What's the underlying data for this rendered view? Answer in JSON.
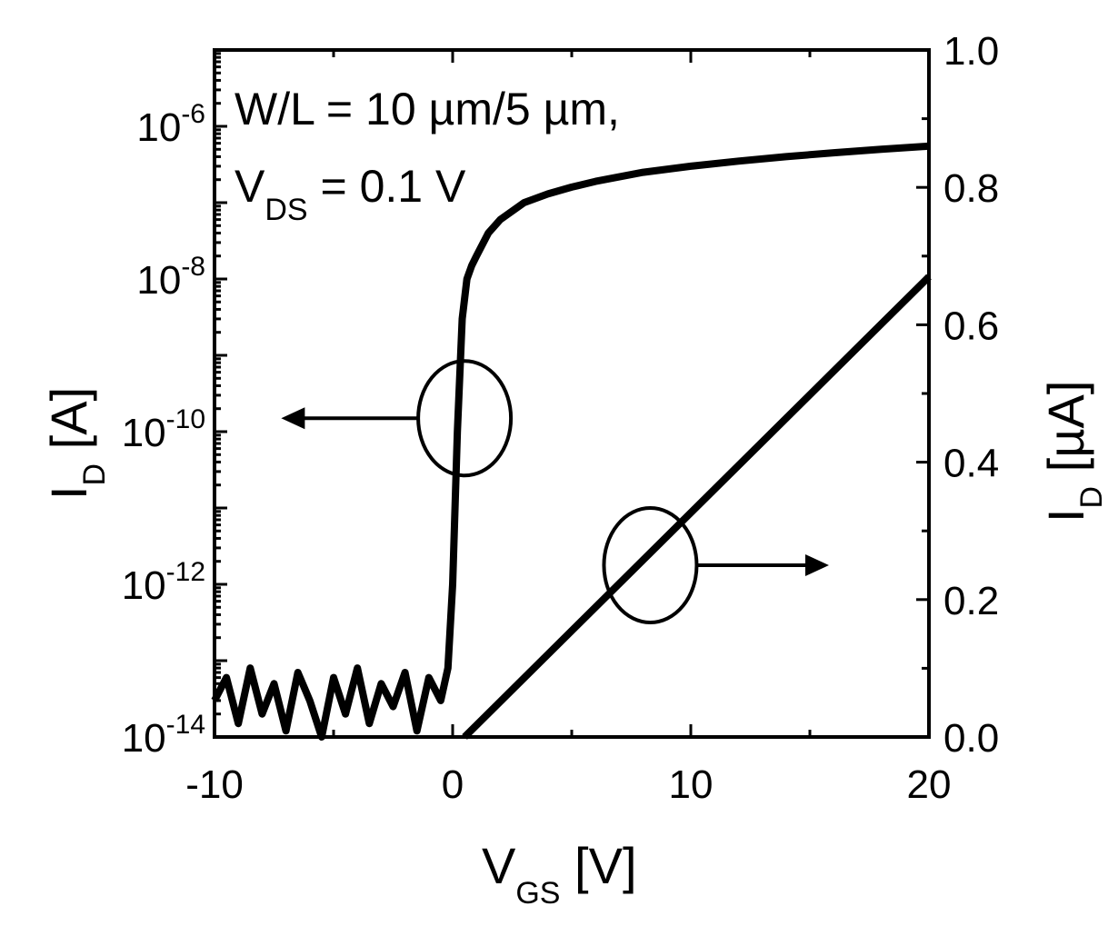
{
  "chart_data": {
    "type": "line",
    "annotation": {
      "line1": "W/L = 10 µm/5 µm,",
      "line2_main": "V",
      "line2_sub": "DS",
      "line2_rest": " = 0.1 V"
    },
    "x_axis": {
      "label_main": "V",
      "label_sub": "GS",
      "label_rest": " [V]",
      "range": [
        -10,
        20
      ],
      "ticks": [
        "-10",
        "0",
        "10",
        "20"
      ],
      "tick_values": [
        -10,
        0,
        10,
        20
      ]
    },
    "y_left": {
      "label_main": "I",
      "label_sub": "D",
      "label_rest": " [A]",
      "scale": "log",
      "range": [
        1e-14,
        1e-05
      ],
      "ticks": [
        {
          "base": "10",
          "exp": "-14",
          "value": 1e-14
        },
        {
          "base": "10",
          "exp": "-12",
          "value": 1e-12
        },
        {
          "base": "10",
          "exp": "-10",
          "value": 1e-10
        },
        {
          "base": "10",
          "exp": "-8",
          "value": 1e-08
        },
        {
          "base": "10",
          "exp": "-6",
          "value": 1e-06
        }
      ]
    },
    "y_right": {
      "label_main": "I",
      "label_sub": "D",
      "label_rest": " [µA]",
      "scale": "linear",
      "range": [
        0,
        1.0
      ],
      "ticks": [
        "0.0",
        "0.2",
        "0.4",
        "0.6",
        "0.8",
        "1.0"
      ],
      "tick_values": [
        0,
        0.2,
        0.4,
        0.6,
        0.8,
        1.0
      ]
    },
    "series": [
      {
        "axis": "left-log",
        "x": [
          -10,
          -9.5,
          -9,
          -8.5,
          -8,
          -7.5,
          -7,
          -6.5,
          -6,
          -5.5,
          -5,
          -4.5,
          -4,
          -3.5,
          -3,
          -2.5,
          -2,
          -1.5,
          -1,
          -0.5,
          -0.2,
          0,
          0.2,
          0.4,
          0.6,
          0.8,
          1,
          1.5,
          2,
          3,
          4,
          5,
          6,
          8,
          10,
          12,
          14,
          16,
          18,
          20
        ],
        "y": [
          3e-14,
          6e-14,
          1.5e-14,
          8e-14,
          2e-14,
          5e-14,
          1.2e-14,
          7e-14,
          3e-14,
          1e-14,
          6e-14,
          2e-14,
          8e-14,
          1.5e-14,
          5e-14,
          2.5e-14,
          7e-14,
          1.2e-14,
          6e-14,
          3e-14,
          8e-14,
          1e-12,
          1e-10,
          3e-09,
          1e-08,
          1.5e-08,
          2e-08,
          4e-08,
          6e-08,
          1e-07,
          1.3e-07,
          1.6e-07,
          1.9e-07,
          2.5e-07,
          3e-07,
          3.5e-07,
          4e-07,
          4.5e-07,
          5e-07,
          5.5e-07
        ]
      },
      {
        "axis": "right-linear",
        "x": [
          0.5,
          20
        ],
        "y": [
          0,
          0.67
        ]
      }
    ],
    "markers": [
      {
        "circle_center": {
          "x": 0.5,
          "y_log": 1.5e-10
        },
        "arrow": "left",
        "arrow_to_x": -7.2
      },
      {
        "circle_center": {
          "x": 8.3,
          "y_lin": 0.25
        },
        "arrow": "right",
        "arrow_to_x": 15.8
      }
    ]
  }
}
